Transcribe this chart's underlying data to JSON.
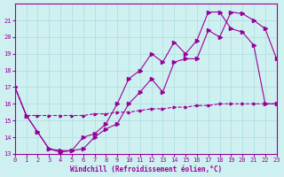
{
  "xlabel": "Windchill (Refroidissement éolien,°C)",
  "xlim": [
    0,
    23
  ],
  "ylim": [
    13,
    22
  ],
  "yticks": [
    13,
    14,
    15,
    16,
    17,
    18,
    19,
    20,
    21
  ],
  "xticks": [
    0,
    1,
    2,
    3,
    4,
    5,
    6,
    7,
    8,
    9,
    10,
    11,
    12,
    13,
    14,
    15,
    16,
    17,
    18,
    19,
    20,
    21,
    22,
    23
  ],
  "bg_color": "#cff0f0",
  "line_color": "#990099",
  "grid_color": "#aadddd",
  "line1_x": [
    0,
    1,
    2,
    3,
    4,
    5,
    6,
    7,
    8,
    9,
    10,
    11,
    12,
    13,
    14,
    15,
    16,
    17,
    18,
    19,
    20,
    21,
    22,
    23
  ],
  "line1_y": [
    17.0,
    15.3,
    14.3,
    13.3,
    13.1,
    13.2,
    13.3,
    14.0,
    14.5,
    14.8,
    16.0,
    16.7,
    17.5,
    16.7,
    18.5,
    18.7,
    18.7,
    20.4,
    20.0,
    21.5,
    21.4,
    21.0,
    20.5,
    18.7
  ],
  "line2_x": [
    0,
    1,
    2,
    3,
    4,
    5,
    6,
    7,
    8,
    9,
    10,
    11,
    12,
    13,
    14,
    15,
    16,
    17,
    18,
    19,
    20,
    21,
    22,
    23
  ],
  "line2_y": [
    17.0,
    15.3,
    14.3,
    13.3,
    13.2,
    13.2,
    14.0,
    14.2,
    14.8,
    16.0,
    17.5,
    18.0,
    19.0,
    18.5,
    19.7,
    19.0,
    19.8,
    21.5,
    21.5,
    20.5,
    20.3,
    19.5,
    16.0,
    16.0
  ],
  "line3_x": [
    0,
    1,
    2,
    3,
    4,
    5,
    6,
    7,
    8,
    9,
    10,
    11,
    12,
    13,
    14,
    15,
    16,
    17,
    18,
    19,
    20,
    21,
    22,
    23
  ],
  "line3_y": [
    17.0,
    15.3,
    15.3,
    15.3,
    15.3,
    15.3,
    15.3,
    15.4,
    15.4,
    15.5,
    15.5,
    15.6,
    15.7,
    15.7,
    15.8,
    15.8,
    15.9,
    15.9,
    16.0,
    16.0,
    16.0,
    16.0,
    16.0,
    16.0
  ]
}
